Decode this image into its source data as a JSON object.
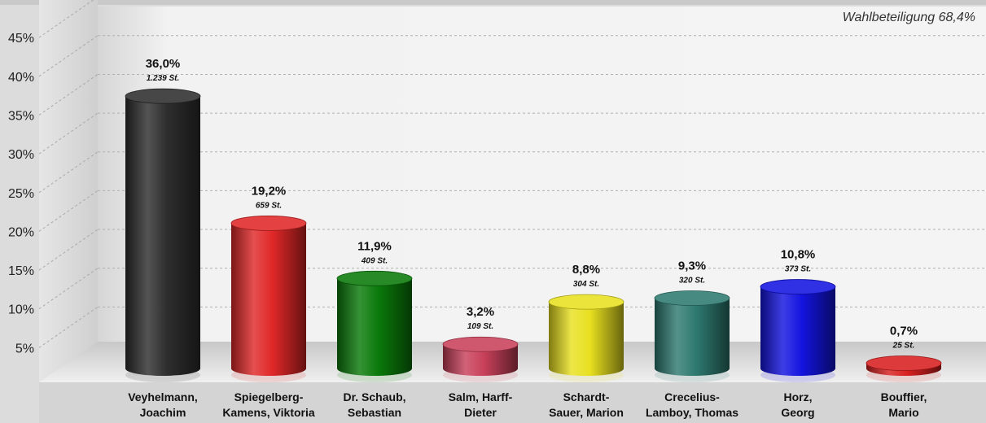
{
  "chart_data": {
    "type": "bar",
    "annotation": "Wahlbeteiligung 68,4%",
    "ylim": [
      0,
      45
    ],
    "yticks": [
      "5%",
      "10%",
      "15%",
      "20%",
      "25%",
      "30%",
      "35%",
      "40%",
      "45%"
    ],
    "grid": true,
    "categories": [
      [
        "Veyhelmann,",
        "Joachim"
      ],
      [
        "Spiegelberg-",
        "Kamens, Viktoria"
      ],
      [
        "Dr. Schaub,",
        "Sebastian"
      ],
      [
        "Salm, Harff-",
        "Dieter"
      ],
      [
        "Schardt-",
        "Sauer, Marion"
      ],
      [
        "Crecelius-",
        "Lamboy, Thomas"
      ],
      [
        "Horz,",
        "Georg"
      ],
      [
        "Bouffier,",
        "Mario"
      ]
    ],
    "values": [
      36.0,
      19.2,
      11.9,
      3.2,
      8.8,
      9.3,
      10.8,
      0.7
    ],
    "value_labels": [
      "36,0%",
      "19,2%",
      "11,9%",
      "3,2%",
      "8,8%",
      "9,3%",
      "10,8%",
      "0,7%"
    ],
    "vote_labels": [
      "1.239 St.",
      "659 St.",
      "409 St.",
      "109 St.",
      "304 St.",
      "320 St.",
      "373 St.",
      "25 St."
    ],
    "colors": [
      "#2e2e2e",
      "#e02828",
      "#0a7a0a",
      "#c8405a",
      "#e8e020",
      "#2e7a70",
      "#1414e0",
      "#d82020"
    ]
  }
}
